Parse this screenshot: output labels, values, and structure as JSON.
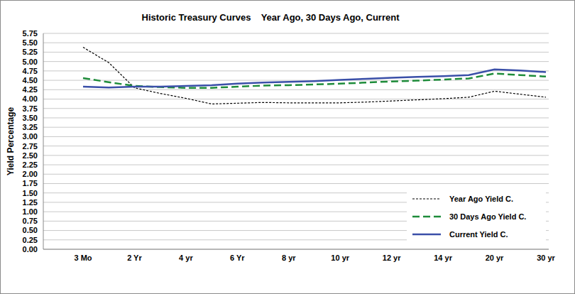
{
  "chart_data": {
    "type": "line",
    "title": "Historic Treasury Curves    Year Ago, 30 Days Ago, Current",
    "y_label": "Yield Percentage",
    "categories": [
      "3 Mo",
      null,
      "2 Yr",
      null,
      "4 yr",
      null,
      "6 Yr",
      null,
      "8 yr",
      null,
      "10 yr",
      null,
      "12 yr",
      null,
      "14 yr",
      null,
      "20 yr",
      null,
      "30 yr"
    ],
    "series": [
      {
        "name": "Year Ago Yield C.",
        "color": "#000000",
        "line_style": "dotted",
        "values": [
          5.38,
          4.97,
          4.3,
          4.15,
          4.02,
          3.87,
          3.89,
          3.91,
          3.9,
          3.9,
          3.9,
          3.92,
          3.95,
          3.98,
          4.01,
          4.05,
          4.21,
          4.13,
          4.05
        ]
      },
      {
        "name": "30 Days Ago Yield C.",
        "color": "#1e8c3a",
        "line_style": "dashed",
        "values": [
          4.56,
          4.45,
          4.35,
          4.32,
          4.3,
          4.3,
          4.33,
          4.36,
          4.37,
          4.39,
          4.41,
          4.44,
          4.47,
          4.49,
          4.52,
          4.55,
          4.68,
          4.64,
          4.6
        ]
      },
      {
        "name": "Current Yield C.",
        "color": "#3a4fa8",
        "line_style": "solid",
        "values": [
          4.33,
          4.31,
          4.33,
          4.33,
          4.35,
          4.37,
          4.41,
          4.44,
          4.46,
          4.48,
          4.51,
          4.54,
          4.57,
          4.59,
          4.61,
          4.64,
          4.79,
          4.76,
          4.72
        ]
      }
    ],
    "ylim": [
      0,
      5.75
    ],
    "yticks": [
      {
        "value": 0,
        "label": "0.00"
      },
      0.25,
      {
        "value": 0.5,
        "label": "0.50"
      },
      0.75,
      {
        "value": 1,
        "label": "1.00"
      },
      1.25,
      {
        "value": 1.5,
        "label": "1.50"
      },
      1.75,
      {
        "value": 2,
        "label": "2.00"
      },
      2.25,
      {
        "value": 2.5,
        "label": "2.50"
      },
      2.75,
      {
        "value": 3,
        "label": "3.00"
      },
      3.25,
      {
        "value": 3.5,
        "label": "3.50"
      },
      3.75,
      {
        "value": 4,
        "label": "4.00"
      },
      4.25,
      {
        "value": 4.5,
        "label": "4.50"
      },
      4.75,
      {
        "value": 5,
        "label": "5.00"
      },
      5.25,
      {
        "value": 5.5,
        "label": "5.50"
      },
      5.75
    ],
    "grid": true,
    "legend": "lower right"
  }
}
